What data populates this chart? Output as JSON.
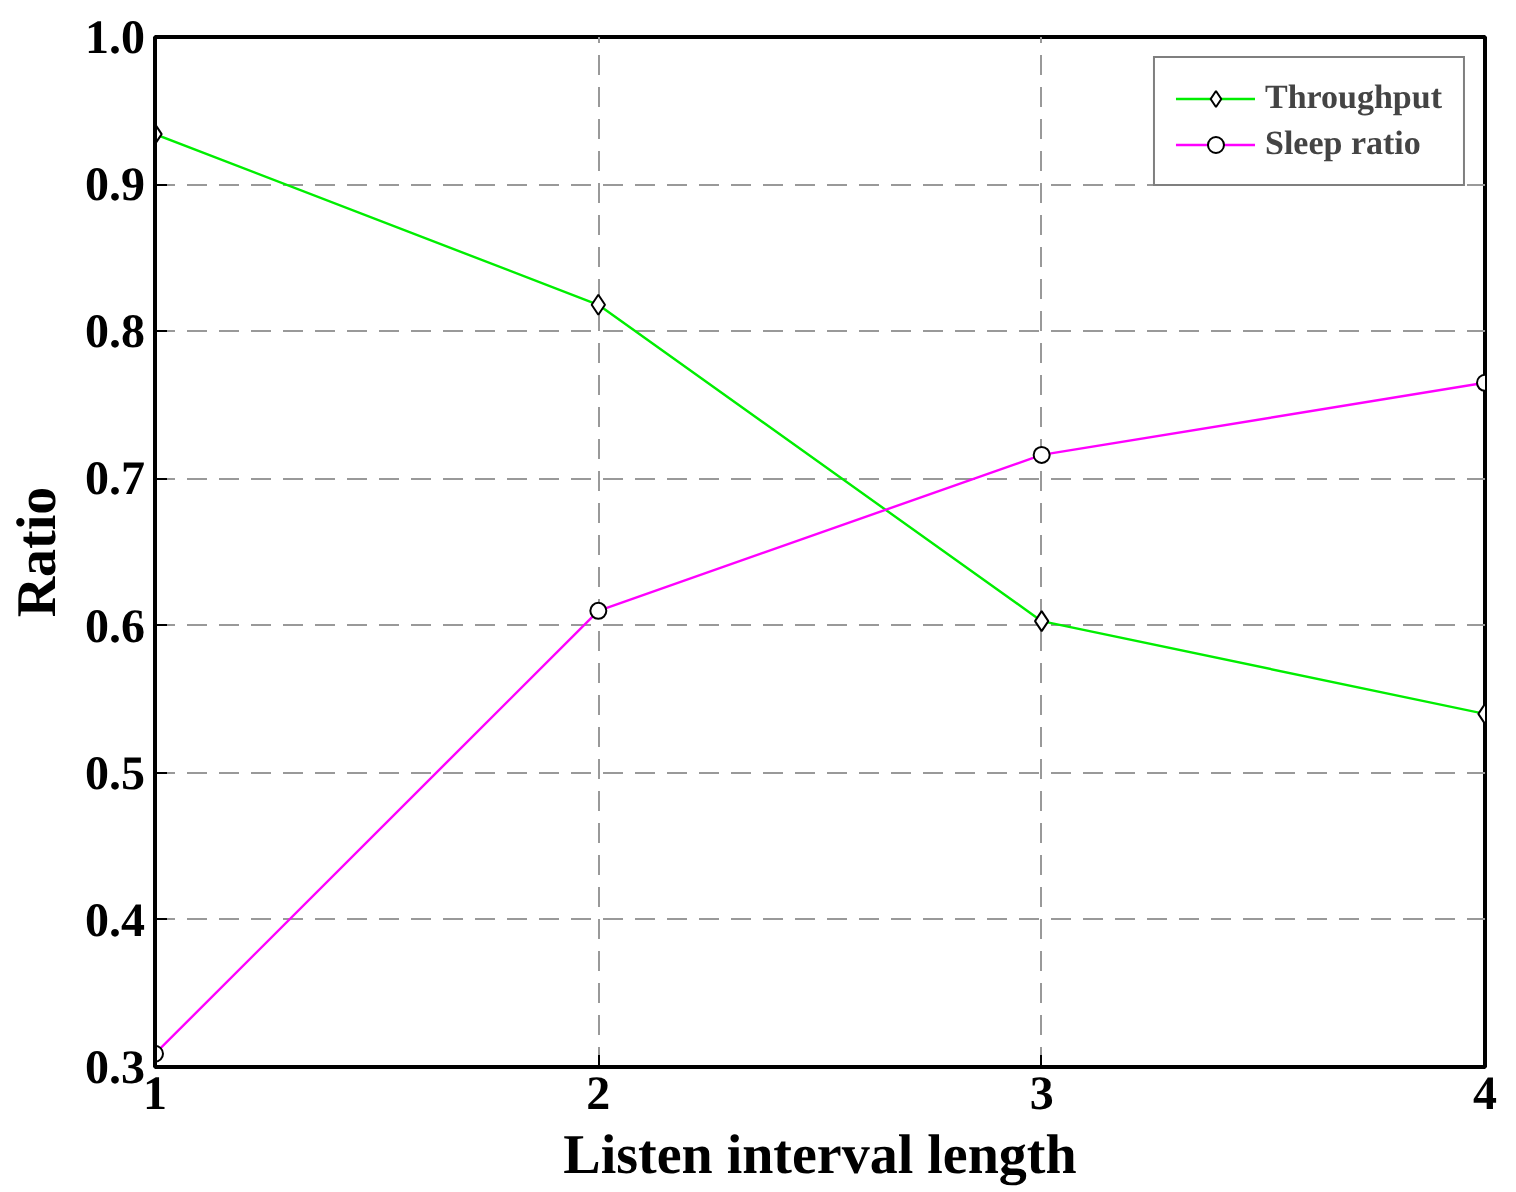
{
  "chart_data": {
    "type": "line",
    "xlabel": "Listen interval length",
    "ylabel": "Ratio",
    "x": [
      1,
      2,
      3,
      4
    ],
    "series": [
      {
        "name": "Throughput",
        "color": "#00ee00",
        "marker": "diamond",
        "values": [
          0.934,
          0.818,
          0.603,
          0.54
        ]
      },
      {
        "name": "Sleep ratio",
        "color": "#ff00ff",
        "marker": "circle",
        "values": [
          0.309,
          0.61,
          0.716,
          0.765
        ]
      }
    ],
    "xlim": [
      1,
      4
    ],
    "xticks": [
      1,
      2,
      3,
      4
    ],
    "ylim": [
      0.3,
      1.0
    ],
    "yticks": [
      {
        "value": 0.3,
        "label": "0.3"
      },
      {
        "value": 0.4,
        "label": "0.4"
      },
      {
        "value": 0.5,
        "label": "0.5"
      },
      {
        "value": 0.6,
        "label": "0.6"
      },
      {
        "value": 0.7,
        "label": "0.7"
      },
      {
        "value": 0.8,
        "label": "0.8"
      },
      {
        "value": 0.9,
        "label": "0.9"
      },
      {
        "value": 1.0,
        "label": "1.0"
      }
    ],
    "grid": true,
    "legend": "top right",
    "line_style": "solid"
  }
}
